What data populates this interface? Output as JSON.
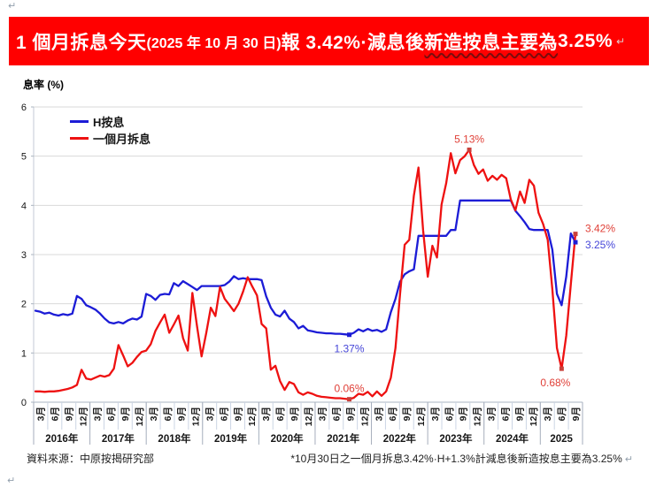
{
  "page": {
    "banner": {
      "bg_color": "#FF0000",
      "text_color": "#FFFFFF",
      "segment_main_1": "1 個月拆息今天",
      "segment_date": "(2025 年 10 月 30 日)",
      "segment_main_2": "報 3.42%·減息後",
      "segment_wavy": "新造按息主要為",
      "segment_main_3": " 3.25%",
      "pilcrow": "↵"
    },
    "paragraph_marks": {
      "top_left": "↵",
      "bottom_left": "↵",
      "after_note": "↵"
    },
    "y_axis_title": "息率 (%)",
    "legend": [
      {
        "label": "H按息",
        "color": "#1c1cd6"
      },
      {
        "label": "一個月拆息",
        "color": "#ee1111"
      }
    ],
    "footer": {
      "source": "資料來源：中原按揭研究部",
      "note": "*10月30日之一個月拆息3.42%·H+1.3%計減息後新造按息主要為3.25%"
    }
  },
  "chart_data": {
    "type": "line",
    "title": "1個月拆息與H按息走勢",
    "ylabel": "息率 (%)",
    "ylim": [
      0,
      6
    ],
    "y_ticks": [
      0,
      1,
      2,
      3,
      4,
      5,
      6
    ],
    "grid": "horizontal",
    "legend_position": "top-left-inside",
    "x": {
      "start": "2016-01",
      "end": "2025-10",
      "points": 118,
      "unit": "month"
    },
    "years": [
      {
        "label": "2016年",
        "quarters": [
          "3月",
          "6月",
          "9月",
          "12月"
        ]
      },
      {
        "label": "2017年",
        "quarters": [
          "3月",
          "6月",
          "9月",
          "12月"
        ]
      },
      {
        "label": "2018年",
        "quarters": [
          "3月",
          "6月",
          "9月",
          "12月"
        ]
      },
      {
        "label": "2019年",
        "quarters": [
          "3月",
          "6月",
          "9月",
          "12月"
        ]
      },
      {
        "label": "2020年",
        "quarters": [
          "3月",
          "6月",
          "9月",
          "12月"
        ]
      },
      {
        "label": "2021年",
        "quarters": [
          "3月",
          "6月",
          "9月",
          "12月"
        ]
      },
      {
        "label": "2022年",
        "quarters": [
          "3月",
          "6月",
          "9月",
          "12月"
        ]
      },
      {
        "label": "2023年",
        "quarters": [
          "3月",
          "6月",
          "9月",
          "12月"
        ]
      },
      {
        "label": "2024年",
        "quarters": [
          "3月",
          "6月",
          "9月",
          "12月"
        ]
      },
      {
        "label": "2025",
        "quarters": [
          "3月",
          "6月",
          "9月"
        ]
      }
    ],
    "series": [
      {
        "name": "H按息",
        "color": "#1c1cd6",
        "marker_color": "#1c1cd6",
        "label_color": "#4646d8",
        "values": [
          1.86,
          1.84,
          1.8,
          1.82,
          1.78,
          1.76,
          1.79,
          1.77,
          1.8,
          2.16,
          2.1,
          1.97,
          1.93,
          1.88,
          1.8,
          1.7,
          1.62,
          1.6,
          1.63,
          1.6,
          1.66,
          1.7,
          1.68,
          1.74,
          2.2,
          2.16,
          2.08,
          2.18,
          2.2,
          2.19,
          2.42,
          2.36,
          2.46,
          2.4,
          2.34,
          2.28,
          2.36,
          2.36,
          2.36,
          2.36,
          2.36,
          2.38,
          2.45,
          2.56,
          2.5,
          2.52,
          2.5,
          2.5,
          2.5,
          2.48,
          2.15,
          1.92,
          1.78,
          1.74,
          1.86,
          1.7,
          1.63,
          1.5,
          1.55,
          1.46,
          1.44,
          1.42,
          1.41,
          1.4,
          1.4,
          1.39,
          1.39,
          1.38,
          1.37,
          1.41,
          1.48,
          1.44,
          1.49,
          1.45,
          1.47,
          1.43,
          1.48,
          1.83,
          2.1,
          2.45,
          2.6,
          2.66,
          2.7,
          3.38,
          3.38,
          3.38,
          3.38,
          3.38,
          3.38,
          3.38,
          3.5,
          3.5,
          4.1,
          4.1,
          4.1,
          4.1,
          4.1,
          4.1,
          4.1,
          4.1,
          4.1,
          4.1,
          4.1,
          4.1,
          3.89,
          3.78,
          3.66,
          3.52,
          3.5,
          3.5,
          3.5,
          3.5,
          3.1,
          2.2,
          1.97,
          2.55,
          3.43,
          3.25
        ]
      },
      {
        "name": "一個月拆息",
        "color": "#ee1111",
        "marker_color": "#c8403a",
        "label_color": "#e04038",
        "values": [
          0.22,
          0.22,
          0.21,
          0.22,
          0.22,
          0.23,
          0.25,
          0.27,
          0.3,
          0.35,
          0.66,
          0.48,
          0.46,
          0.5,
          0.54,
          0.52,
          0.55,
          0.68,
          1.16,
          0.95,
          0.73,
          0.8,
          0.92,
          1.02,
          1.05,
          1.18,
          1.45,
          1.62,
          1.78,
          1.41,
          1.58,
          1.76,
          1.3,
          1.05,
          2.22,
          1.55,
          0.93,
          1.4,
          1.92,
          1.75,
          2.34,
          2.1,
          1.98,
          1.85,
          2.0,
          2.25,
          2.54,
          2.35,
          2.17,
          1.59,
          1.5,
          0.66,
          0.74,
          0.43,
          0.25,
          0.41,
          0.37,
          0.2,
          0.15,
          0.2,
          0.17,
          0.13,
          0.11,
          0.1,
          0.09,
          0.08,
          0.08,
          0.07,
          0.06,
          0.09,
          0.17,
          0.15,
          0.21,
          0.12,
          0.22,
          0.13,
          0.22,
          0.5,
          1.1,
          2.2,
          3.2,
          3.3,
          4.2,
          4.77,
          3.5,
          2.55,
          3.18,
          2.94,
          4.02,
          4.45,
          5.06,
          4.65,
          4.92,
          5.0,
          5.13,
          4.82,
          4.64,
          4.73,
          4.5,
          4.6,
          4.52,
          4.62,
          4.55,
          4.12,
          3.9,
          4.28,
          4.05,
          4.52,
          4.4,
          3.85,
          3.62,
          3.3,
          2.3,
          1.1,
          0.68,
          1.35,
          2.4,
          3.42
        ]
      }
    ],
    "annotations": [
      {
        "series": 1,
        "index": 94,
        "label": "5.13%",
        "placement": "above"
      },
      {
        "series": 0,
        "index": 68,
        "label": "1.37%",
        "placement": "below"
      },
      {
        "series": 1,
        "index": 68,
        "label": "0.06%",
        "placement": "above"
      },
      {
        "series": 1,
        "index": 114,
        "label": "0.68%",
        "placement": "below-left"
      },
      {
        "series": 1,
        "index": 117,
        "label": "3.42%",
        "placement": "right-above"
      },
      {
        "series": 0,
        "index": 117,
        "label": "3.25%",
        "placement": "right-below"
      }
    ],
    "colors": {
      "gridline": "#d9d9d9",
      "axis": "#aab4c0",
      "quarter_separator": "#ccd5e4",
      "year_separator": "#a6aebc",
      "tick_text": "#161616"
    }
  }
}
